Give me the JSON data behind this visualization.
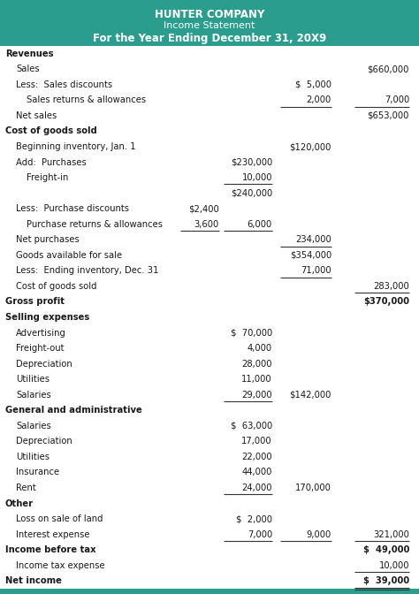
{
  "title1": "HUNTER COMPANY",
  "title2": "Income Statement",
  "title3": "For the Year Ending December 31, 20X9",
  "header_bg": "#2a9d8f",
  "footer_bg": "#2a9d8f",
  "header_text_color": "#ffffff",
  "body_bg": "#ffffff",
  "body_text_color": "#1a1a1a",
  "rows": [
    {
      "label": "Revenues",
      "c1": "",
      "c2": "",
      "c3": "",
      "c4": "",
      "bold": true,
      "indent": 0
    },
    {
      "label": "Sales",
      "c1": "",
      "c2": "",
      "c3": "",
      "c4": "$660,000",
      "bold": false,
      "indent": 1
    },
    {
      "label": "Less:  Sales discounts",
      "c1": "",
      "c2": "",
      "c3": "$  5,000",
      "c4": "",
      "bold": false,
      "indent": 1
    },
    {
      "label": "Sales returns & allowances",
      "c1": "",
      "c2": "",
      "c3": "2,000",
      "c4": "7,000",
      "bold": false,
      "indent": 2,
      "underline_c3": true,
      "underline_c4": true
    },
    {
      "label": "Net sales",
      "c1": "",
      "c2": "",
      "c3": "",
      "c4": "$653,000",
      "bold": false,
      "indent": 1
    },
    {
      "label": "Cost of goods sold",
      "c1": "",
      "c2": "",
      "c3": "",
      "c4": "",
      "bold": true,
      "indent": 0
    },
    {
      "label": "Beginning inventory, Jan. 1",
      "c1": "",
      "c2": "",
      "c3": "$120,000",
      "c4": "",
      "bold": false,
      "indent": 1
    },
    {
      "label": "Add:  Purchases",
      "c1": "",
      "c2": "$230,000",
      "c3": "",
      "c4": "",
      "bold": false,
      "indent": 1
    },
    {
      "label": "Freight-in",
      "c1": "",
      "c2": "10,000",
      "c3": "",
      "c4": "",
      "bold": false,
      "indent": 2,
      "underline_c2": true
    },
    {
      "label": "",
      "c1": "",
      "c2": "$240,000",
      "c3": "",
      "c4": "",
      "bold": false,
      "indent": 2
    },
    {
      "label": "Less:  Purchase discounts",
      "c1": "$2,400",
      "c2": "",
      "c3": "",
      "c4": "",
      "bold": false,
      "indent": 1
    },
    {
      "label": "Purchase returns & allowances",
      "c1": "3,600",
      "c2": "6,000",
      "c3": "",
      "c4": "",
      "bold": false,
      "indent": 2,
      "underline_c1": true,
      "underline_c2": true
    },
    {
      "label": "Net purchases",
      "c1": "",
      "c2": "",
      "c3": "234,000",
      "c4": "",
      "bold": false,
      "indent": 1,
      "underline_c3": true
    },
    {
      "label": "Goods available for sale",
      "c1": "",
      "c2": "",
      "c3": "$354,000",
      "c4": "",
      "bold": false,
      "indent": 1
    },
    {
      "label": "Less:  Ending inventory, Dec. 31",
      "c1": "",
      "c2": "",
      "c3": "71,000",
      "c4": "",
      "bold": false,
      "indent": 1,
      "underline_c3": true
    },
    {
      "label": "Cost of goods sold",
      "c1": "",
      "c2": "",
      "c3": "",
      "c4": "283,000",
      "bold": false,
      "indent": 1,
      "underline_c4": true
    },
    {
      "label": "Gross profit",
      "c1": "",
      "c2": "",
      "c3": "",
      "c4": "$370,000",
      "bold": true,
      "indent": 0
    },
    {
      "label": "Selling expenses",
      "c1": "",
      "c2": "",
      "c3": "",
      "c4": "",
      "bold": true,
      "indent": 0
    },
    {
      "label": "Advertising",
      "c1": "",
      "c2": "$  70,000",
      "c3": "",
      "c4": "",
      "bold": false,
      "indent": 1
    },
    {
      "label": "Freight-out",
      "c1": "",
      "c2": "4,000",
      "c3": "",
      "c4": "",
      "bold": false,
      "indent": 1
    },
    {
      "label": "Depreciation",
      "c1": "",
      "c2": "28,000",
      "c3": "",
      "c4": "",
      "bold": false,
      "indent": 1
    },
    {
      "label": "Utilities",
      "c1": "",
      "c2": "11,000",
      "c3": "",
      "c4": "",
      "bold": false,
      "indent": 1
    },
    {
      "label": "Salaries",
      "c1": "",
      "c2": "29,000",
      "c3": "$142,000",
      "c4": "",
      "bold": false,
      "indent": 1,
      "underline_c2": true
    },
    {
      "label": "General and administrative",
      "c1": "",
      "c2": "",
      "c3": "",
      "c4": "",
      "bold": true,
      "indent": 0
    },
    {
      "label": "Salaries",
      "c1": "",
      "c2": "$  63,000",
      "c3": "",
      "c4": "",
      "bold": false,
      "indent": 1
    },
    {
      "label": "Depreciation",
      "c1": "",
      "c2": "17,000",
      "c3": "",
      "c4": "",
      "bold": false,
      "indent": 1
    },
    {
      "label": "Utilities",
      "c1": "",
      "c2": "22,000",
      "c3": "",
      "c4": "",
      "bold": false,
      "indent": 1
    },
    {
      "label": "Insurance",
      "c1": "",
      "c2": "44,000",
      "c3": "",
      "c4": "",
      "bold": false,
      "indent": 1
    },
    {
      "label": "Rent",
      "c1": "",
      "c2": "24,000",
      "c3": "170,000",
      "c4": "",
      "bold": false,
      "indent": 1,
      "underline_c2": true
    },
    {
      "label": "Other",
      "c1": "",
      "c2": "",
      "c3": "",
      "c4": "",
      "bold": true,
      "indent": 0
    },
    {
      "label": "Loss on sale of land",
      "c1": "",
      "c2": "$  2,000",
      "c3": "",
      "c4": "",
      "bold": false,
      "indent": 1
    },
    {
      "label": "Interest expense",
      "c1": "",
      "c2": "7,000",
      "c3": "9,000",
      "c4": "321,000",
      "bold": false,
      "indent": 1,
      "underline_c2": true,
      "underline_c3": true,
      "underline_c4": true
    },
    {
      "label": "Income before tax",
      "c1": "",
      "c2": "",
      "c3": "",
      "c4": "$  49,000",
      "bold": true,
      "indent": 0
    },
    {
      "label": "Income tax expense",
      "c1": "",
      "c2": "",
      "c3": "",
      "c4": "10,000",
      "bold": false,
      "indent": 1,
      "underline_c4": true
    },
    {
      "label": "Net income",
      "c1": "",
      "c2": "",
      "c3": "",
      "c4": "$  39,000",
      "bold": true,
      "indent": 0,
      "double_underline_c4": true
    }
  ]
}
